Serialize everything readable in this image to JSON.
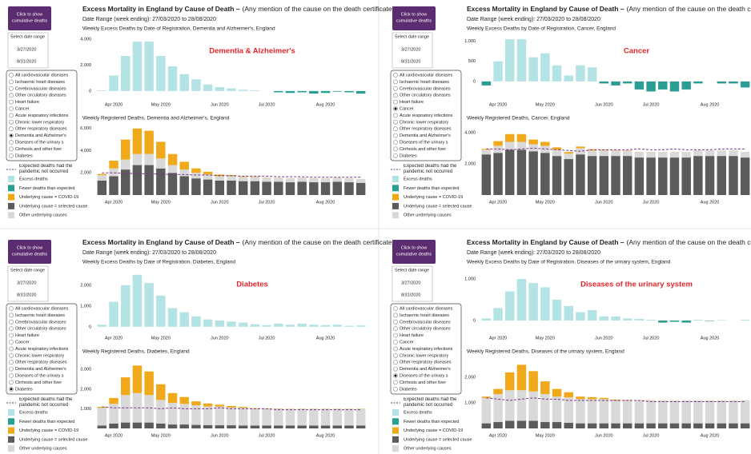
{
  "dashboard": {
    "button": [
      "Click to show",
      "cumulative deaths"
    ],
    "date_label": "Select date range",
    "date_start": "3/27/2020",
    "date_end": "8/31/2020",
    "title": "Excess Mortality in England by Cause of Death –",
    "title_note": "(Any mention of the cause on the death certificate)",
    "date_range": "Date Range (week ending): 27/03/2020 to 28/08/2020",
    "options": [
      "All cardiovascular diseases",
      "Ischaemic heart diseases",
      "Cerebrovascular diseases",
      "Other circulatory diseases",
      "Heart failure",
      "Cancer",
      "Acute respiratory infections",
      "Chronic lower respiratory",
      "Other respiratory diseases",
      "Dementia and Alzheimer's",
      "Diseases of the urinary s",
      "Cirrhosis and other liver",
      "Diabetes"
    ]
  },
  "panels": [
    {
      "annotation": "Dementia & Alzheimer's",
      "selected": 9
    },
    {
      "annotation": "Cancer",
      "selected": 5
    },
    {
      "annotation": "Diabetes",
      "selected": 12
    },
    {
      "annotation": "Diseases of the urinary system",
      "selected": 10
    }
  ],
  "chart_data": [
    {
      "type": "bar",
      "title": "Weekly Excess Deaths by Date of Registration, Dementia and Alzheimer's, England",
      "categories": [
        null,
        "Apr 2020",
        null,
        null,
        null,
        "May 2020",
        null,
        null,
        null,
        null,
        "Jun 2020",
        null,
        null,
        null,
        "Jul 2020",
        null,
        null,
        null,
        null,
        "Aug 2020",
        null,
        null,
        null
      ],
      "values": [
        50,
        1200,
        2700,
        3800,
        3800,
        2700,
        1900,
        1300,
        900,
        500,
        300,
        200,
        100,
        50,
        0,
        -100,
        -150,
        -100,
        -200,
        -150,
        -50,
        -100,
        -200
      ],
      "series": [
        {
          "name": "Excess deaths",
          "color": "#b3e3e4"
        },
        {
          "name": "Fewer deaths than expected",
          "color": "#2a9d94"
        }
      ],
      "ylim": [
        -500,
        4300
      ],
      "yticks": [
        0,
        {
          "value": 2000,
          "label": "2,000"
        },
        {
          "value": 4000,
          "label": "4,000"
        }
      ]
    },
    {
      "type": "stacked_bar",
      "title": "Weekly Registered Deaths, Dementia and Alzheimer's, England",
      "categories": [
        null,
        "Apr 2020",
        null,
        null,
        null,
        "May 2020",
        null,
        null,
        null,
        null,
        "Jun 2020",
        null,
        null,
        null,
        "Jul 2020",
        null,
        null,
        null,
        null,
        "Aug 2020",
        null,
        null,
        null
      ],
      "series": [
        {
          "name": "Underlying cause = selected cause",
          "color": "#5b5b5b",
          "values": [
            1300,
            1700,
            2300,
            2700,
            2700,
            2400,
            2000,
            1700,
            1500,
            1400,
            1300,
            1300,
            1250,
            1250,
            1200,
            1200,
            1150,
            1200,
            1150,
            1150,
            1200,
            1150,
            1100
          ]
        },
        {
          "name": "Other underlying causes",
          "color": "#d9d9d9",
          "values": [
            500,
            700,
            900,
            1000,
            1000,
            900,
            700,
            600,
            500,
            450,
            400,
            400,
            380,
            380,
            350,
            350,
            350,
            350,
            350,
            340,
            340,
            340,
            330
          ]
        },
        {
          "name": "Underlying cause = COVID-19",
          "color": "#efa91a",
          "values": [
            100,
            700,
            1800,
            2300,
            2100,
            1500,
            1000,
            700,
            400,
            250,
            150,
            100,
            60,
            40,
            20,
            10,
            10,
            10,
            10,
            10,
            10,
            10,
            10
          ]
        }
      ],
      "expected": {
        "name": "Expected deaths had the pandemic not occurred",
        "color": "#7b3589",
        "values": [
          2000,
          2000,
          1950,
          1950,
          1900,
          1900,
          1850,
          1850,
          1800,
          1800,
          1750,
          1750,
          1700,
          1700,
          1700,
          1650,
          1650,
          1650,
          1600,
          1600,
          1600,
          1600,
          1600
        ]
      },
      "ylim": [
        0,
        6200
      ],
      "yticks": [
        {
          "value": 2000,
          "label": "2,000"
        },
        {
          "value": 4000,
          "label": "4,000"
        },
        {
          "value": 6000,
          "label": "6,000"
        }
      ]
    },
    {
      "type": "bar",
      "title": "Weekly Excess Deaths by Date of Registration, Cancer, England",
      "categories": [
        null,
        "Apr 2020",
        null,
        null,
        null,
        "May 2020",
        null,
        null,
        null,
        null,
        "Jun 2020",
        null,
        null,
        null,
        "Jul 2020",
        null,
        null,
        null,
        null,
        "Aug 2020",
        null,
        null,
        null
      ],
      "values": [
        -100,
        500,
        1050,
        1050,
        600,
        700,
        400,
        150,
        400,
        350,
        -50,
        -100,
        -50,
        -200,
        -250,
        -200,
        -250,
        -200,
        -50,
        0,
        -50,
        -50,
        -150
      ],
      "series": [
        {
          "name": "Excess deaths",
          "color": "#b3e3e4"
        },
        {
          "name": "Fewer deaths than expected",
          "color": "#2a9d94"
        }
      ],
      "ylim": [
        -400,
        1150
      ],
      "yticks": [
        0,
        500,
        {
          "value": 1000,
          "label": "1,000"
        }
      ]
    },
    {
      "type": "stacked_bar",
      "title": "Weekly Registered Deaths, Cancer, England",
      "categories": [
        null,
        "Apr 2020",
        null,
        null,
        null,
        "May 2020",
        null,
        null,
        null,
        null,
        "Jun 2020",
        null,
        null,
        null,
        "Jul 2020",
        null,
        null,
        null,
        null,
        "Aug 2020",
        null,
        null,
        null
      ],
      "series": [
        {
          "name": "Underlying cause = selected cause",
          "color": "#5b5b5b",
          "values": [
            2600,
            2700,
            2900,
            2900,
            2800,
            2700,
            2500,
            2300,
            2600,
            2500,
            2500,
            2500,
            2500,
            2400,
            2400,
            2400,
            2400,
            2400,
            2500,
            2500,
            2500,
            2500,
            2400
          ]
        },
        {
          "name": "Other underlying causes",
          "color": "#d9d9d9",
          "values": [
            300,
            450,
            500,
            500,
            450,
            450,
            400,
            350,
            400,
            350,
            350,
            350,
            350,
            350,
            350,
            350,
            350,
            350,
            350,
            350,
            350,
            350,
            350
          ]
        },
        {
          "name": "Underlying cause = COVID-19",
          "color": "#efa91a",
          "values": [
            50,
            300,
            500,
            500,
            300,
            250,
            150,
            100,
            100,
            80,
            50,
            30,
            20,
            10,
            10,
            5,
            5,
            5,
            5,
            5,
            5,
            5,
            5
          ]
        }
      ],
      "expected": {
        "name": "Expected deaths had the pandemic not occurred",
        "color": "#7b3589",
        "values": [
          2950,
          2950,
          2900,
          2950,
          3000,
          2950,
          2900,
          2850,
          2800,
          2900,
          2900,
          2900,
          2900,
          2950,
          2900,
          2900,
          2950,
          2900,
          2900,
          2900,
          2950,
          2950,
          2950
        ]
      },
      "ylim": [
        0,
        4400
      ],
      "yticks": [
        {
          "value": 2000,
          "label": "2,000"
        },
        {
          "value": 4000,
          "label": "4,000"
        }
      ]
    },
    {
      "type": "bar",
      "title": "Weekly Excess Deaths by Date of Registration, Diabetes, England",
      "categories": [
        null,
        "Apr 2020",
        null,
        null,
        null,
        "May 2020",
        null,
        null,
        null,
        null,
        "Jun 2020",
        null,
        null,
        null,
        "Jul 2020",
        null,
        null,
        null,
        null,
        "Aug 2020",
        null,
        null,
        null
      ],
      "values": [
        100,
        1200,
        2000,
        2500,
        2100,
        1500,
        900,
        700,
        500,
        350,
        300,
        250,
        200,
        120,
        80,
        150,
        100,
        150,
        100,
        80,
        100,
        50,
        60
      ],
      "series": [
        {
          "name": "Excess deaths",
          "color": "#b3e3e4"
        },
        {
          "name": "Fewer deaths than expected",
          "color": "#2a9d94"
        }
      ],
      "ylim": [
        -200,
        2800
      ],
      "yticks": [
        0,
        {
          "value": 1000,
          "label": "1,000"
        },
        {
          "value": 2000,
          "label": "2,000"
        }
      ]
    },
    {
      "type": "stacked_bar",
      "title": "Weekly Registered Deaths, Diabetes, England",
      "categories": [
        null,
        "Apr 2020",
        null,
        null,
        null,
        "May 2020",
        null,
        null,
        null,
        null,
        "Jun 2020",
        null,
        null,
        null,
        "Jul 2020",
        null,
        null,
        null,
        null,
        "Aug 2020",
        null,
        null,
        null
      ],
      "series": [
        {
          "name": "Underlying cause = selected cause",
          "color": "#5b5b5b",
          "values": [
            150,
            250,
            300,
            300,
            300,
            250,
            200,
            200,
            180,
            170,
            160,
            160,
            150,
            150,
            150,
            150,
            150,
            150,
            150,
            150,
            150,
            150,
            150
          ]
        },
        {
          "name": "Other underlying causes",
          "color": "#d9d9d9",
          "values": [
            900,
            1000,
            1400,
            1500,
            1400,
            1200,
            1100,
            1050,
            1000,
            950,
            950,
            900,
            900,
            850,
            850,
            850,
            850,
            850,
            850,
            850,
            850,
            850,
            850
          ]
        },
        {
          "name": "Underlying cause = COVID-19",
          "color": "#efa91a",
          "values": [
            50,
            300,
            900,
            1400,
            1200,
            800,
            500,
            350,
            200,
            150,
            100,
            80,
            50,
            30,
            20,
            15,
            10,
            10,
            10,
            10,
            10,
            10,
            10
          ]
        }
      ],
      "expected": {
        "name": "Expected deaths had the pandemic not occurred",
        "color": "#7b3589",
        "values": [
          1100,
          1050,
          1050,
          1050,
          1050,
          1000,
          1050,
          1000,
          1000,
          1000,
          1050,
          1000,
          1000,
          1000,
          1000,
          950,
          950,
          950,
          950,
          950,
          950,
          950,
          950
        ]
      },
      "ylim": [
        0,
        3500
      ],
      "yticks": [
        {
          "value": 1000,
          "label": "1,000"
        },
        {
          "value": 2000,
          "label": "2,000"
        },
        {
          "value": 3000,
          "label": "3,000"
        }
      ]
    },
    {
      "type": "bar",
      "title": "Weekly Excess Deaths by Date of Registration, Diseases of the urinary system, England",
      "categories": [
        null,
        "Apr 2020",
        null,
        null,
        null,
        "May 2020",
        null,
        null,
        null,
        null,
        "Jun 2020",
        null,
        null,
        null,
        "Jul 2020",
        null,
        null,
        null,
        null,
        "Aug 2020",
        null,
        null,
        null
      ],
      "values": [
        50,
        300,
        700,
        1000,
        900,
        800,
        500,
        350,
        200,
        250,
        100,
        100,
        50,
        40,
        20,
        -50,
        -30,
        -50,
        20,
        -10,
        10,
        0,
        20
      ],
      "series": [
        {
          "name": "Excess deaths",
          "color": "#b3e3e4"
        },
        {
          "name": "Fewer deaths than expected",
          "color": "#2a9d94"
        }
      ],
      "ylim": [
        -250,
        1250
      ],
      "yticks": [
        0,
        {
          "value": 1000,
          "label": "1,000"
        }
      ]
    },
    {
      "type": "stacked_bar",
      "title": "Weekly Registered Deaths, Diseases of the urinary system, England",
      "categories": [
        null,
        "Apr 2020",
        null,
        null,
        null,
        "May 2020",
        null,
        null,
        null,
        null,
        "Jun 2020",
        null,
        null,
        null,
        "Jul 2020",
        null,
        null,
        null,
        null,
        "Aug 2020",
        null,
        null,
        null
      ],
      "series": [
        {
          "name": "Underlying cause = selected cause",
          "color": "#5b5b5b",
          "values": [
            200,
            250,
            300,
            300,
            300,
            250,
            250,
            220,
            200,
            200,
            200,
            200,
            200,
            200,
            200,
            200,
            200,
            200,
            200,
            200,
            200,
            200,
            200
          ]
        },
        {
          "name": "Other underlying causes",
          "color": "#d9d9d9",
          "values": [
            1000,
            1100,
            1200,
            1200,
            1150,
            1100,
            1000,
            1000,
            950,
            950,
            950,
            900,
            900,
            900,
            900,
            900,
            900,
            900,
            900,
            900,
            900,
            900,
            900
          ]
        },
        {
          "name": "Underlying cause = COVID-19",
          "color": "#efa91a",
          "values": [
            50,
            200,
            700,
            1000,
            800,
            500,
            300,
            200,
            100,
            80,
            50,
            30,
            20,
            10,
            10,
            5,
            5,
            5,
            5,
            5,
            5,
            5,
            5
          ]
        }
      ],
      "expected": {
        "name": "Expected deaths had the pandemic not occurred",
        "color": "#7b3589",
        "values": [
          1200,
          1150,
          1100,
          1150,
          1200,
          1150,
          1150,
          1100,
          1100,
          1100,
          1100,
          1100,
          1100,
          1100,
          1050,
          1050,
          1050,
          1050,
          1050,
          1050,
          1050,
          1050,
          1050
        ]
      },
      "ylim": [
        0,
        2700
      ],
      "yticks": [
        {
          "value": 1000,
          "label": "1,000"
        },
        {
          "value": 2000,
          "label": "2,000"
        }
      ]
    }
  ]
}
